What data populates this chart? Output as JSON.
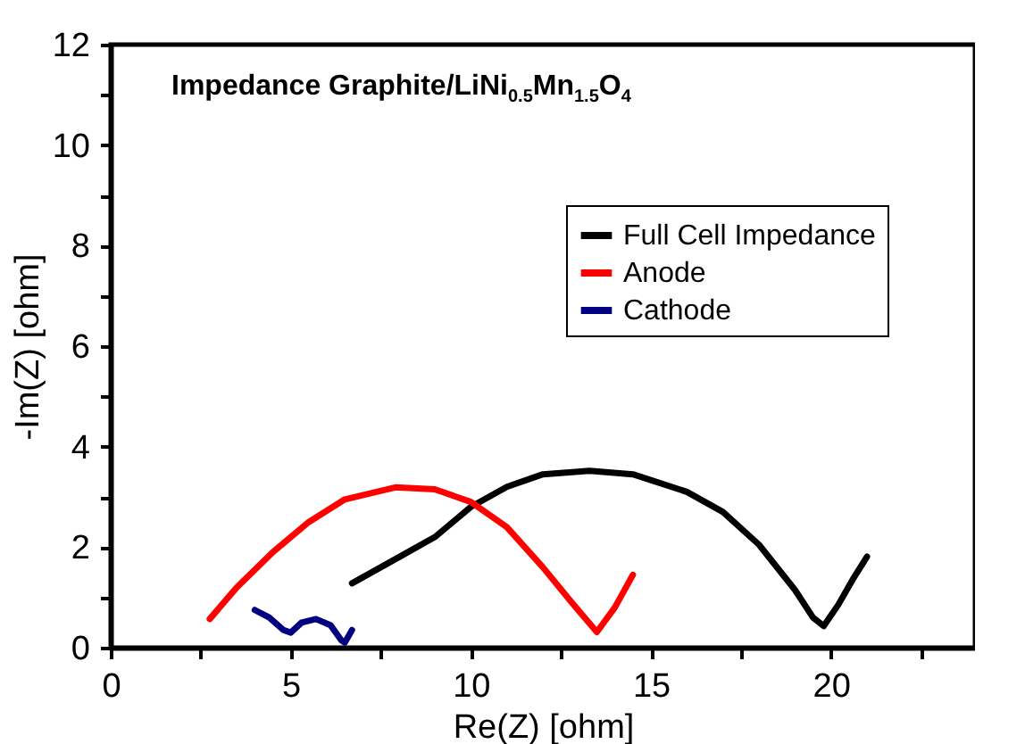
{
  "chart_data": {
    "type": "line",
    "title": "Impedance Graphite/LiNi$_{0.5}$Mn$_{1.5}$O$_{4}$",
    "xlabel": "Re(Z) [ohm]",
    "ylabel": "-Im(Z) [ohm]",
    "xlim": [
      0,
      24
    ],
    "ylim": [
      0,
      12
    ],
    "xticks": [
      0,
      {
        "value": 2.5,
        "label": null
      },
      5,
      {
        "value": 7.5,
        "label": null
      },
      10,
      {
        "value": 12.5,
        "label": null
      },
      15,
      {
        "value": 17.5,
        "label": null
      },
      20,
      {
        "value": 22.5,
        "label": null
      }
    ],
    "yticks": [
      0,
      {
        "value": 1,
        "label": null
      },
      2,
      {
        "value": 3,
        "label": null
      },
      4,
      {
        "value": 5,
        "label": null
      },
      6,
      {
        "value": 7,
        "label": null
      },
      8,
      {
        "value": 9,
        "label": null
      },
      10,
      {
        "value": 11,
        "label": null
      },
      12
    ],
    "grid": false,
    "legend": "top right",
    "marker": "none",
    "line_style": "solid",
    "series": [
      {
        "name": "Full Cell Impedance",
        "color": "#000000",
        "x": [
          6.7,
          8,
          9,
          10,
          11,
          12,
          13.3,
          14.5,
          16,
          17,
          18,
          19,
          19.5,
          19.8,
          20.2,
          20.6,
          21.0
        ],
        "values": [
          1.28,
          1.8,
          2.2,
          2.8,
          3.2,
          3.45,
          3.52,
          3.45,
          3.1,
          2.7,
          2.05,
          1.15,
          0.6,
          0.43,
          0.85,
          1.35,
          1.81
        ]
      },
      {
        "name": "Anode",
        "color": "#ff0000",
        "x": [
          2.75,
          3.5,
          4.5,
          5.5,
          6.5,
          7.9,
          9,
          10,
          11,
          12,
          12.8,
          13.5,
          14,
          14.5
        ],
        "values": [
          0.57,
          1.2,
          1.9,
          2.5,
          2.95,
          3.19,
          3.15,
          2.9,
          2.4,
          1.6,
          0.9,
          0.31,
          0.8,
          1.45
        ]
      },
      {
        "name": "Cathode",
        "color": "#000080",
        "x": [
          4.0,
          4.4,
          4.8,
          5.0,
          5.3,
          5.7,
          6.1,
          6.4,
          6.5,
          6.7
        ],
        "values": [
          0.75,
          0.6,
          0.35,
          0.3,
          0.5,
          0.57,
          0.45,
          0.15,
          0.1,
          0.35
        ]
      }
    ]
  }
}
